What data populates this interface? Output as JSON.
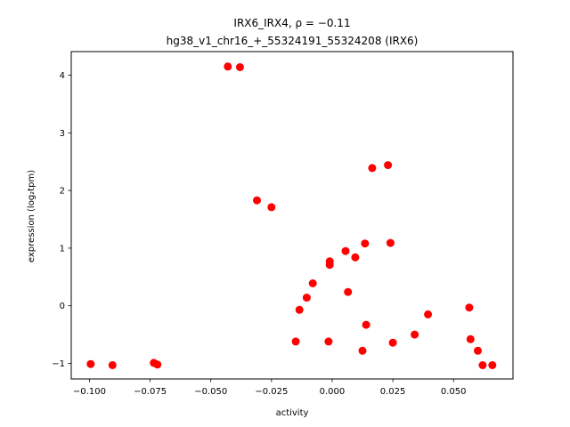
{
  "chart_data": {
    "type": "scatter",
    "title_line1": "IRX6_IRX4, ρ = −0.11",
    "title_line2": "hg38_v1_chr16_+_55324191_55324208 (IRX6)",
    "xlabel": "activity",
    "ylabel": "expression (log₂tpm)",
    "xlim": [
      -0.1075,
      0.0745
    ],
    "ylim": [
      -1.27,
      4.41
    ],
    "xticks": [
      {
        "value": -0.1,
        "label": "−0.100"
      },
      {
        "value": -0.075,
        "label": "−0.075"
      },
      {
        "value": -0.05,
        "label": "−0.050"
      },
      {
        "value": -0.025,
        "label": "−0.025"
      },
      {
        "value": 0.0,
        "label": "0.000"
      },
      {
        "value": 0.025,
        "label": "0.025"
      },
      {
        "value": 0.05,
        "label": "0.050"
      }
    ],
    "yticks": [
      {
        "value": -1,
        "label": "−1"
      },
      {
        "value": 0,
        "label": "0"
      },
      {
        "value": 1,
        "label": "1"
      },
      {
        "value": 2,
        "label": "2"
      },
      {
        "value": 3,
        "label": "3"
      },
      {
        "value": 4,
        "label": "4"
      }
    ],
    "point_color": "#ff0000",
    "points": [
      {
        "x": -0.0995,
        "y": -1.01
      },
      {
        "x": -0.0905,
        "y": -1.03
      },
      {
        "x": -0.0735,
        "y": -0.99
      },
      {
        "x": -0.072,
        "y": -1.02
      },
      {
        "x": -0.043,
        "y": 4.15
      },
      {
        "x": -0.038,
        "y": 4.14
      },
      {
        "x": -0.031,
        "y": 1.83
      },
      {
        "x": -0.025,
        "y": 1.71
      },
      {
        "x": -0.015,
        "y": -0.62
      },
      {
        "x": -0.0135,
        "y": -0.07
      },
      {
        "x": -0.0105,
        "y": 0.14
      },
      {
        "x": -0.008,
        "y": 0.39
      },
      {
        "x": -0.001,
        "y": 0.77
      },
      {
        "x": -0.001,
        "y": 0.71
      },
      {
        "x": -0.0015,
        "y": -0.62
      },
      {
        "x": 0.0055,
        "y": 0.95
      },
      {
        "x": 0.0065,
        "y": 0.24
      },
      {
        "x": 0.0095,
        "y": 0.84
      },
      {
        "x": 0.0125,
        "y": -0.78
      },
      {
        "x": 0.0135,
        "y": 1.08
      },
      {
        "x": 0.014,
        "y": -0.33
      },
      {
        "x": 0.0165,
        "y": 2.39
      },
      {
        "x": 0.023,
        "y": 2.44
      },
      {
        "x": 0.024,
        "y": 1.09
      },
      {
        "x": 0.025,
        "y": -0.64
      },
      {
        "x": 0.034,
        "y": -0.5
      },
      {
        "x": 0.0395,
        "y": -0.15
      },
      {
        "x": 0.0565,
        "y": -0.03
      },
      {
        "x": 0.057,
        "y": -0.58
      },
      {
        "x": 0.06,
        "y": -0.78
      },
      {
        "x": 0.062,
        "y": -1.03
      },
      {
        "x": 0.066,
        "y": -1.03
      }
    ]
  }
}
